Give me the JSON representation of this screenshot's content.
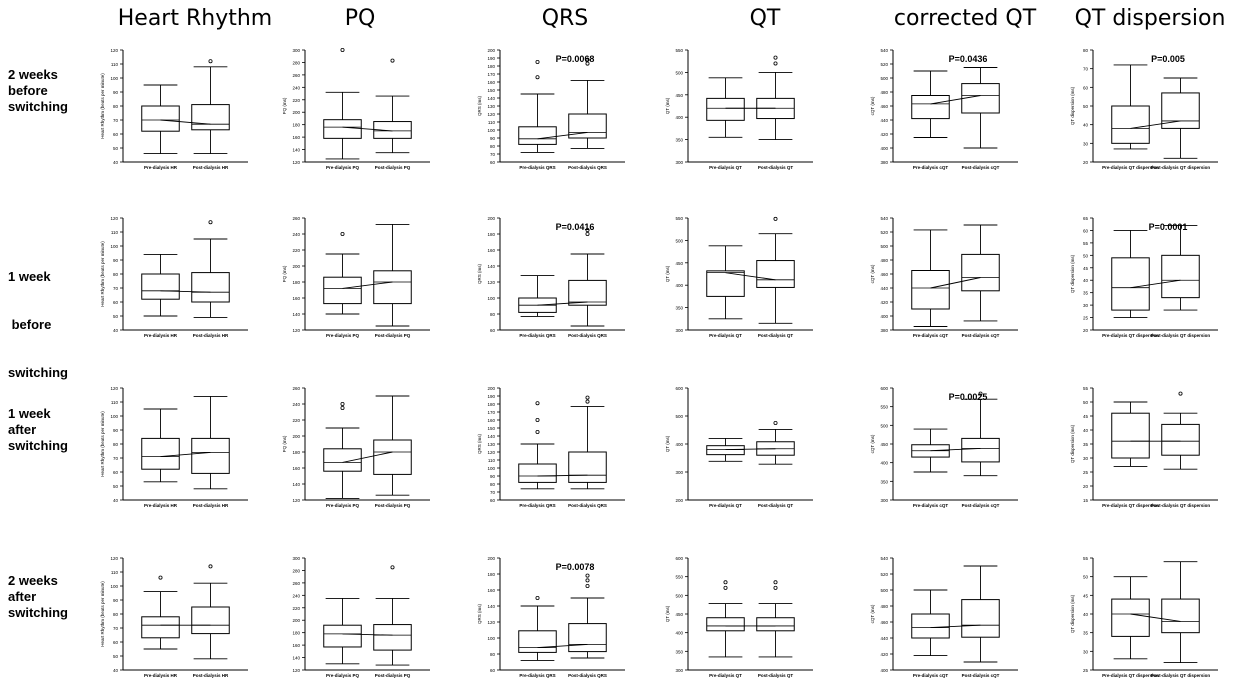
{
  "column_titles": [
    "Heart Rhythm",
    "PQ",
    "QRS",
    "QT",
    "corrected QT",
    "QT dispersion"
  ],
  "row_labels": [
    [
      "2 weeks",
      "before",
      "switching"
    ],
    [
      "1 week",
      " before",
      "switching"
    ],
    [
      "1 week",
      "after",
      "switching"
    ],
    [
      "2 weeks",
      "after",
      "switching"
    ]
  ],
  "chart_data": [
    {
      "type": "box",
      "row": 0,
      "col": 0,
      "ylabel": "Heart Rhythm (beats per minute)",
      "ylim": [
        40,
        120
      ],
      "yticks": [
        40,
        50,
        60,
        70,
        80,
        90,
        100,
        110,
        120
      ],
      "categories": [
        "Pre-dialysis HR",
        "Post-dialysis HR"
      ],
      "boxes": [
        {
          "min": 46,
          "q1": 62,
          "median": 70,
          "q3": 80,
          "max": 95,
          "outliers": []
        },
        {
          "min": 46,
          "q1": 63,
          "median": 67,
          "q3": 81,
          "max": 108,
          "outliers": [
            112
          ]
        }
      ],
      "pvalue": ""
    },
    {
      "type": "box",
      "row": 0,
      "col": 1,
      "ylabel": "PQ (ms)",
      "ylim": [
        120,
        300
      ],
      "yticks": [
        120,
        140,
        160,
        180,
        200,
        220,
        240,
        260,
        280,
        300
      ],
      "categories": [
        "Pre-dialysis PQ",
        "Post-dialysis PQ"
      ],
      "boxes": [
        {
          "min": 125,
          "q1": 158,
          "median": 176,
          "q3": 188,
          "max": 232,
          "outliers": [
            300
          ]
        },
        {
          "min": 135,
          "q1": 158,
          "median": 170,
          "q3": 185,
          "max": 226,
          "outliers": [
            283
          ]
        }
      ],
      "pvalue": ""
    },
    {
      "type": "box",
      "row": 0,
      "col": 2,
      "ylabel": "QRS (ms)",
      "ylim": [
        60,
        200
      ],
      "yticks": [
        60,
        70,
        80,
        90,
        100,
        110,
        120,
        130,
        140,
        150,
        160,
        170,
        180,
        190,
        200
      ],
      "categories": [
        "Pre-dialysis QRS",
        "Post-dialysis QRS"
      ],
      "boxes": [
        {
          "min": 72,
          "q1": 82,
          "median": 89,
          "q3": 104,
          "max": 145,
          "outliers": [
            166,
            185
          ]
        },
        {
          "min": 77,
          "q1": 90,
          "median": 97,
          "q3": 120,
          "max": 162,
          "outliers": [
            183,
            188
          ]
        }
      ],
      "pvalue": "P=0.0068"
    },
    {
      "type": "box",
      "row": 0,
      "col": 3,
      "ylabel": "QT (ms)",
      "ylim": [
        300,
        550
      ],
      "yticks": [
        300,
        350,
        400,
        450,
        500,
        550
      ],
      "categories": [
        "Pre-dialysis QT",
        "Post-dialysis QT"
      ],
      "boxes": [
        {
          "min": 355,
          "q1": 393,
          "median": 420,
          "q3": 442,
          "max": 488,
          "outliers": []
        },
        {
          "min": 350,
          "q1": 397,
          "median": 420,
          "q3": 442,
          "max": 500,
          "outliers": [
            520,
            533
          ]
        }
      ],
      "pvalue": ""
    },
    {
      "type": "box",
      "row": 0,
      "col": 4,
      "ylabel": "cQT (ms)",
      "ylim": [
        380,
        540
      ],
      "yticks": [
        380,
        400,
        420,
        440,
        460,
        480,
        500,
        520,
        540
      ],
      "categories": [
        "Pre-dialysis cQT",
        "Post-dialysis cQT"
      ],
      "boxes": [
        {
          "min": 415,
          "q1": 442,
          "median": 463,
          "q3": 475,
          "max": 510,
          "outliers": []
        },
        {
          "min": 400,
          "q1": 450,
          "median": 475,
          "q3": 492,
          "max": 515,
          "outliers": []
        }
      ],
      "pvalue": "P=0.0436"
    },
    {
      "type": "box",
      "row": 0,
      "col": 5,
      "ylabel": "QT dispersion (ms)",
      "ylim": [
        20,
        80
      ],
      "yticks": [
        20,
        30,
        40,
        50,
        60,
        70,
        80
      ],
      "categories": [
        "Pre-dialysis QT dispersion",
        "Post-dialysis QT dispersion"
      ],
      "boxes": [
        {
          "min": 27,
          "q1": 30,
          "median": 38,
          "q3": 50,
          "max": 72,
          "outliers": []
        },
        {
          "min": 22,
          "q1": 38,
          "median": 42,
          "q3": 57,
          "max": 65,
          "outliers": []
        }
      ],
      "pvalue": "P=0.005"
    },
    {
      "type": "box",
      "row": 1,
      "col": 0,
      "ylabel": "Heart Rhythm (beats per minute)",
      "ylim": [
        40,
        120
      ],
      "yticks": [
        40,
        50,
        60,
        70,
        80,
        90,
        100,
        110,
        120
      ],
      "categories": [
        "Pre-dialysis HR",
        "Post-dialysis HR"
      ],
      "boxes": [
        {
          "min": 50,
          "q1": 62,
          "median": 68,
          "q3": 80,
          "max": 94,
          "outliers": []
        },
        {
          "min": 49,
          "q1": 60,
          "median": 67,
          "q3": 81,
          "max": 105,
          "outliers": [
            117
          ]
        }
      ],
      "pvalue": ""
    },
    {
      "type": "box",
      "row": 1,
      "col": 1,
      "ylabel": "PQ (ms)",
      "ylim": [
        120,
        260
      ],
      "yticks": [
        120,
        140,
        160,
        180,
        200,
        220,
        240,
        260
      ],
      "categories": [
        "Pre-dialysis PQ",
        "Post-dialysis PQ"
      ],
      "boxes": [
        {
          "min": 140,
          "q1": 153,
          "median": 172,
          "q3": 186,
          "max": 215,
          "outliers": [
            240
          ]
        },
        {
          "min": 125,
          "q1": 153,
          "median": 180,
          "q3": 194,
          "max": 252,
          "outliers": []
        }
      ],
      "pvalue": ""
    },
    {
      "type": "box",
      "row": 1,
      "col": 2,
      "ylabel": "QRS (ms)",
      "ylim": [
        60,
        200
      ],
      "yticks": [
        60,
        80,
        100,
        120,
        140,
        160,
        180,
        200
      ],
      "categories": [
        "Pre-dialysis QRS",
        "Post-dialysis QRS"
      ],
      "boxes": [
        {
          "min": 77,
          "q1": 82,
          "median": 91,
          "q3": 100,
          "max": 128,
          "outliers": []
        },
        {
          "min": 65,
          "q1": 91,
          "median": 95,
          "q3": 122,
          "max": 155,
          "outliers": [
            180,
            185
          ]
        }
      ],
      "pvalue": "P=0.0416"
    },
    {
      "type": "box",
      "row": 1,
      "col": 3,
      "ylabel": "QT (ms)",
      "ylim": [
        300,
        550
      ],
      "yticks": [
        300,
        350,
        400,
        450,
        500,
        550
      ],
      "categories": [
        "Pre-dialysis QT",
        "Post-dialysis QT"
      ],
      "boxes": [
        {
          "min": 325,
          "q1": 375,
          "median": 428,
          "q3": 432,
          "max": 488,
          "outliers": []
        },
        {
          "min": 315,
          "q1": 395,
          "median": 412,
          "q3": 455,
          "max": 515,
          "outliers": [
            548
          ]
        }
      ],
      "pvalue": ""
    },
    {
      "type": "box",
      "row": 1,
      "col": 4,
      "ylabel": "cQT (ms)",
      "ylim": [
        380,
        540
      ],
      "yticks": [
        380,
        400,
        420,
        440,
        460,
        480,
        500,
        520,
        540
      ],
      "categories": [
        "Pre-dialysis cQT",
        "Post-dialysis cQT"
      ],
      "boxes": [
        {
          "min": 385,
          "q1": 410,
          "median": 440,
          "q3": 465,
          "max": 523,
          "outliers": []
        },
        {
          "min": 393,
          "q1": 436,
          "median": 455,
          "q3": 488,
          "max": 530,
          "outliers": []
        }
      ],
      "pvalue": ""
    },
    {
      "type": "box",
      "row": 1,
      "col": 5,
      "ylabel": "QT dispersion (ms)",
      "ylim": [
        20,
        65
      ],
      "yticks": [
        20,
        25,
        30,
        35,
        40,
        45,
        50,
        55,
        60,
        65
      ],
      "categories": [
        "Pre-dialysis QT dispersion",
        "Post-dialysis QT dispersion"
      ],
      "boxes": [
        {
          "min": 25,
          "q1": 28,
          "median": 37,
          "q3": 49,
          "max": 60,
          "outliers": []
        },
        {
          "min": 28,
          "q1": 33,
          "median": 40,
          "q3": 50,
          "max": 62,
          "outliers": []
        }
      ],
      "pvalue": "P=0.0001"
    },
    {
      "type": "box",
      "row": 2,
      "col": 0,
      "ylabel": "Heart Rhythm (beats per minute)",
      "ylim": [
        40,
        120
      ],
      "yticks": [
        40,
        50,
        60,
        70,
        80,
        90,
        100,
        110,
        120
      ],
      "categories": [
        "Pre-dialysis HR",
        "Post-dialysis HR"
      ],
      "boxes": [
        {
          "min": 53,
          "q1": 62,
          "median": 71,
          "q3": 84,
          "max": 105,
          "outliers": []
        },
        {
          "min": 48,
          "q1": 59,
          "median": 74,
          "q3": 84,
          "max": 114,
          "outliers": []
        }
      ],
      "pvalue": ""
    },
    {
      "type": "box",
      "row": 2,
      "col": 1,
      "ylabel": "PQ (ms)",
      "ylim": [
        120,
        260
      ],
      "yticks": [
        120,
        140,
        160,
        180,
        200,
        220,
        240,
        260
      ],
      "categories": [
        "Pre-dialysis PQ",
        "Post-dialysis PQ"
      ],
      "boxes": [
        {
          "min": 122,
          "q1": 156,
          "median": 167,
          "q3": 184,
          "max": 210,
          "outliers": [
            235,
            240
          ]
        },
        {
          "min": 126,
          "q1": 152,
          "median": 180,
          "q3": 195,
          "max": 250,
          "outliers": []
        }
      ],
      "pvalue": ""
    },
    {
      "type": "box",
      "row": 2,
      "col": 2,
      "ylabel": "QRS (ms)",
      "ylim": [
        60,
        200
      ],
      "yticks": [
        60,
        70,
        80,
        90,
        100,
        110,
        120,
        130,
        140,
        150,
        160,
        170,
        180,
        190,
        200
      ],
      "categories": [
        "Pre-dialysis QRS",
        "Post-dialysis QRS"
      ],
      "boxes": [
        {
          "min": 74,
          "q1": 82,
          "median": 90,
          "q3": 105,
          "max": 130,
          "outliers": [
            145,
            160,
            181
          ]
        },
        {
          "min": 74,
          "q1": 82,
          "median": 91,
          "q3": 120,
          "max": 177,
          "outliers": [
            183,
            188
          ]
        }
      ],
      "pvalue": ""
    },
    {
      "type": "box",
      "row": 2,
      "col": 3,
      "ylabel": "QT (ms)",
      "ylim": [
        200,
        600
      ],
      "yticks": [
        200,
        300,
        400,
        500,
        600
      ],
      "categories": [
        "Pre-dialysis QT",
        "Post-dialysis QT"
      ],
      "boxes": [
        {
          "min": 338,
          "q1": 362,
          "median": 380,
          "q3": 394,
          "max": 420,
          "outliers": []
        },
        {
          "min": 328,
          "q1": 360,
          "median": 383,
          "q3": 408,
          "max": 452,
          "outliers": [
            475
          ]
        }
      ],
      "pvalue": ""
    },
    {
      "type": "box",
      "row": 2,
      "col": 4,
      "ylabel": "cQT (ms)",
      "ylim": [
        300,
        600
      ],
      "yticks": [
        300,
        350,
        400,
        450,
        500,
        550,
        600
      ],
      "categories": [
        "Pre-dialysis cQT",
        "Post-dialysis cQT"
      ],
      "boxes": [
        {
          "min": 375,
          "q1": 415,
          "median": 432,
          "q3": 448,
          "max": 490,
          "outliers": []
        },
        {
          "min": 365,
          "q1": 402,
          "median": 438,
          "q3": 465,
          "max": 570,
          "outliers": [
            585
          ]
        }
      ],
      "pvalue": "P=0.0025"
    },
    {
      "type": "box",
      "row": 2,
      "col": 5,
      "ylabel": "QT dispersion (ms)",
      "ylim": [
        15,
        55
      ],
      "yticks": [
        15,
        20,
        25,
        30,
        35,
        40,
        45,
        50,
        55
      ],
      "categories": [
        "Pre-dialysis QT dispersion",
        "Post-dialysis QT dispersion"
      ],
      "boxes": [
        {
          "min": 27,
          "q1": 30,
          "median": 36,
          "q3": 46,
          "max": 50,
          "outliers": []
        },
        {
          "min": 26,
          "q1": 31,
          "median": 36,
          "q3": 42,
          "max": 46,
          "outliers": [
            53
          ]
        }
      ],
      "pvalue": ""
    },
    {
      "type": "box",
      "row": 3,
      "col": 0,
      "ylabel": "Heart Rhythm (beats per minute)",
      "ylim": [
        40,
        120
      ],
      "yticks": [
        40,
        50,
        60,
        70,
        80,
        90,
        100,
        110,
        120
      ],
      "categories": [
        "Pre-dialysis HR",
        "Post-dialysis HR"
      ],
      "boxes": [
        {
          "min": 55,
          "q1": 63,
          "median": 72,
          "q3": 78,
          "max": 96,
          "outliers": [
            106
          ]
        },
        {
          "min": 48,
          "q1": 66,
          "median": 72,
          "q3": 85,
          "max": 102,
          "outliers": [
            114
          ]
        }
      ],
      "pvalue": ""
    },
    {
      "type": "box",
      "row": 3,
      "col": 1,
      "ylabel": "",
      "ylim": [
        120,
        300
      ],
      "yticks": [
        120,
        140,
        160,
        180,
        200,
        220,
        240,
        260,
        280,
        300
      ],
      "categories": [
        "Pre-dialysis PQ",
        "Post-dialysis PQ"
      ],
      "boxes": [
        {
          "min": 130,
          "q1": 157,
          "median": 178,
          "q3": 192,
          "max": 235,
          "outliers": []
        },
        {
          "min": 128,
          "q1": 152,
          "median": 176,
          "q3": 193,
          "max": 235,
          "outliers": [
            285
          ]
        }
      ],
      "pvalue": ""
    },
    {
      "type": "box",
      "row": 3,
      "col": 2,
      "ylabel": "QRS (ms)",
      "ylim": [
        60,
        200
      ],
      "yticks": [
        60,
        80,
        100,
        120,
        140,
        160,
        180,
        200
      ],
      "categories": [
        "Pre-dialysis QRS",
        "Post-dialysis QRS"
      ],
      "boxes": [
        {
          "min": 72,
          "q1": 82,
          "median": 88,
          "q3": 109,
          "max": 140,
          "outliers": [
            150
          ]
        },
        {
          "min": 75,
          "q1": 83,
          "median": 92,
          "q3": 118,
          "max": 150,
          "outliers": [
            165,
            172,
            178
          ]
        }
      ],
      "pvalue": "P=0.0078"
    },
    {
      "type": "box",
      "row": 3,
      "col": 3,
      "ylabel": "QT (ms)",
      "ylim": [
        300,
        600
      ],
      "yticks": [
        300,
        350,
        400,
        450,
        500,
        550,
        600
      ],
      "categories": [
        "Pre-dialysis QT",
        "Post-dialysis QT"
      ],
      "boxes": [
        {
          "min": 335,
          "q1": 405,
          "median": 418,
          "q3": 440,
          "max": 478,
          "outliers": [
            520,
            535
          ]
        },
        {
          "min": 335,
          "q1": 405,
          "median": 418,
          "q3": 440,
          "max": 478,
          "outliers": [
            520,
            535
          ]
        }
      ],
      "pvalue": ""
    },
    {
      "type": "box",
      "row": 3,
      "col": 4,
      "ylabel": "cQT (ms)",
      "ylim": [
        400,
        540
      ],
      "yticks": [
        400,
        420,
        440,
        460,
        480,
        500,
        520,
        540
      ],
      "categories": [
        "Pre-dialysis cQT",
        "Post-dialysis cQT"
      ],
      "boxes": [
        {
          "min": 418,
          "q1": 440,
          "median": 453,
          "q3": 470,
          "max": 500,
          "outliers": []
        },
        {
          "min": 410,
          "q1": 441,
          "median": 456,
          "q3": 488,
          "max": 530,
          "outliers": []
        }
      ],
      "pvalue": ""
    },
    {
      "type": "box",
      "row": 3,
      "col": 5,
      "ylabel": "QT dispersion (ms)",
      "ylim": [
        25,
        55
      ],
      "yticks": [
        25,
        30,
        35,
        40,
        45,
        50,
        55
      ],
      "categories": [
        "Pre-dialysis QT dispersion",
        "Post-dialysis QT dispersion"
      ],
      "boxes": [
        {
          "min": 28,
          "q1": 34,
          "median": 40,
          "q3": 44,
          "max": 50,
          "outliers": []
        },
        {
          "min": 27,
          "q1": 35,
          "median": 38,
          "q3": 44,
          "max": 54,
          "outliers": []
        }
      ],
      "pvalue": ""
    }
  ]
}
